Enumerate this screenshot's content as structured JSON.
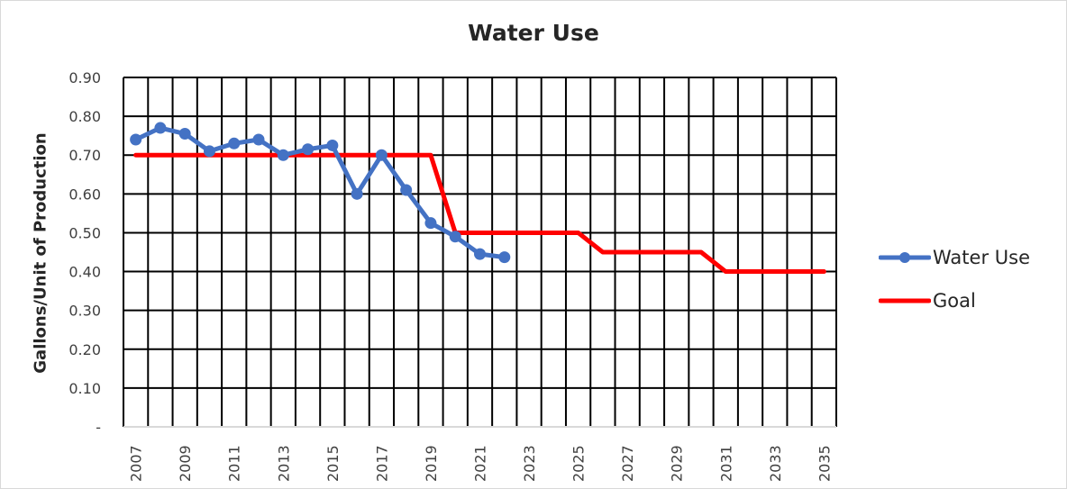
{
  "chart_data": {
    "type": "line",
    "title": "Water Use",
    "xlabel": "",
    "ylabel": "Gallons/Unit of Production",
    "x": [
      2007,
      2008,
      2009,
      2010,
      2011,
      2012,
      2013,
      2014,
      2015,
      2016,
      2017,
      2018,
      2019,
      2020,
      2021,
      2022,
      2023,
      2024,
      2025,
      2026,
      2027,
      2028,
      2029,
      2030,
      2031,
      2032,
      2033,
      2034,
      2035
    ],
    "x_tick_labels": [
      "2007",
      "2009",
      "2011",
      "2013",
      "2015",
      "2017",
      "2019",
      "2021",
      "2023",
      "2025",
      "2027",
      "2029",
      "2031",
      "2033",
      "2035"
    ],
    "ylim": [
      0,
      0.9
    ],
    "y_tick_labels": [
      "-",
      "0.10",
      "0.20",
      "0.30",
      "0.40",
      "0.50",
      "0.60",
      "0.70",
      "0.80",
      "0.90"
    ],
    "grid": true,
    "legend_position": "right",
    "series": [
      {
        "name": "Water Use",
        "color": "#4472C4",
        "marker": "circle",
        "values": [
          0.74,
          0.77,
          0.755,
          0.71,
          0.73,
          0.74,
          0.7,
          0.715,
          0.725,
          0.6,
          0.7,
          0.61,
          0.525,
          0.49,
          0.445,
          0.437,
          null,
          null,
          null,
          null,
          null,
          null,
          null,
          null,
          null,
          null,
          null,
          null,
          null
        ]
      },
      {
        "name": "Goal",
        "color": "#FF0000",
        "marker": "none",
        "values": [
          0.7,
          0.7,
          0.7,
          0.7,
          0.7,
          0.7,
          0.7,
          0.7,
          0.7,
          0.7,
          0.7,
          0.7,
          0.7,
          0.5,
          0.5,
          0.5,
          0.5,
          0.5,
          0.5,
          0.45,
          0.45,
          0.45,
          0.45,
          0.45,
          0.4,
          0.4,
          0.4,
          0.4,
          0.4
        ]
      }
    ]
  }
}
